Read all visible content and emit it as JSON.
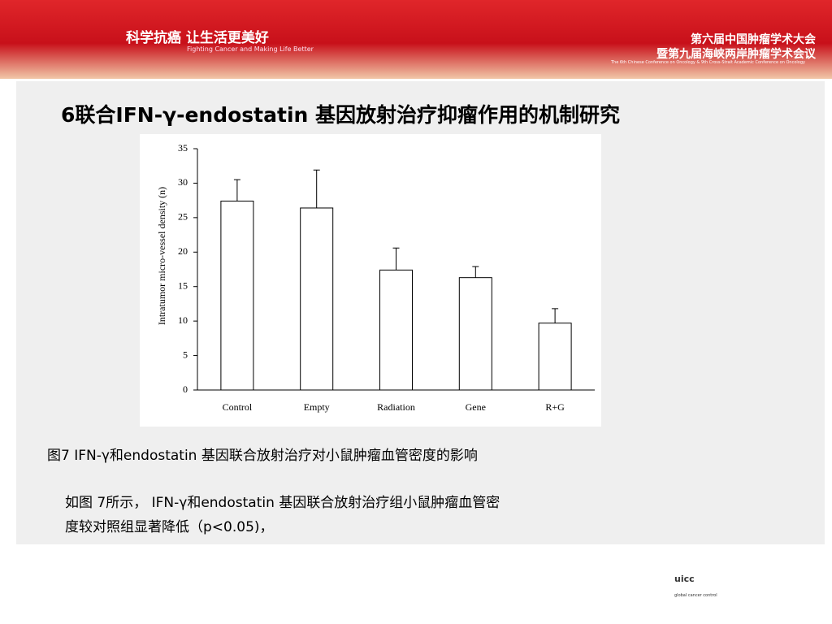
{
  "header": {
    "slogan": "科学抗癌 让生活更美好",
    "slogan_en": "Fighting Cancer and Making Life Better",
    "conference": "第六届中国肿瘤学术大会",
    "conference_sub": "暨第九届海峡两岸肿瘤学术会议",
    "conference_en": "The 6th Chinese Conference on Oncology & 9th Cross-Strait Academic Conference on Oncology"
  },
  "title": "6联合IFN-γ-endostatin 基因放射治疗抑瘤作用的机制研究",
  "chart_data": {
    "type": "bar",
    "ylabel": "Intratumor micro-vessel density (n)",
    "categories": [
      "Control",
      "Empty",
      "Radiation",
      "Gene",
      "R+G"
    ],
    "values": [
      27.4,
      26.4,
      17.4,
      16.3,
      9.7
    ],
    "errors": [
      3.1,
      5.5,
      3.2,
      1.6,
      2.1
    ],
    "color": "#ffffff",
    "ylim": [
      0,
      35
    ],
    "yticks": [
      0,
      5,
      10,
      15,
      20,
      25,
      30,
      35
    ]
  },
  "caption": "图7 IFN-γ和endostatin 基因联合放射治疗对小鼠肿瘤血管密度的影响",
  "paragraph": [
    "如图 7所示， IFN-γ和endostatin 基因联合放射治疗组小鼠肿瘤血管密",
    "度较对照组显著降低（p<0.05)，"
  ],
  "footer": {
    "logo_text": "uicc",
    "logo_sub": "global cancer control"
  }
}
